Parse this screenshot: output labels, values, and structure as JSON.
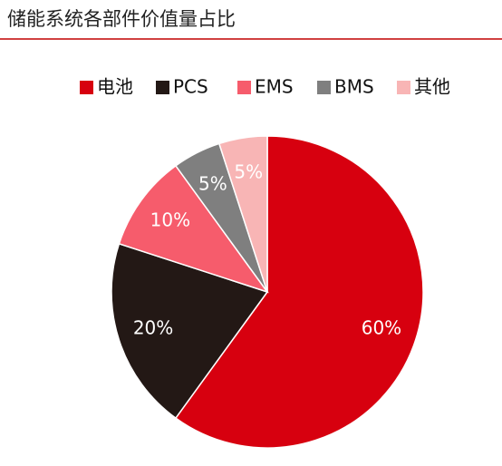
{
  "chart_data": {
    "type": "pie",
    "title": "储能系统各部件价值量占比",
    "categories": [
      "电池",
      "PCS",
      "EMS",
      "BMS",
      "其他"
    ],
    "values": [
      60,
      20,
      10,
      5,
      5
    ],
    "value_labels": [
      "60%",
      "20%",
      "10%",
      "5%",
      "5%"
    ],
    "colors": [
      "#d7000f",
      "#231815",
      "#f65c6c",
      "#7f7f7f",
      "#f8b5b5"
    ],
    "legend": "top"
  }
}
